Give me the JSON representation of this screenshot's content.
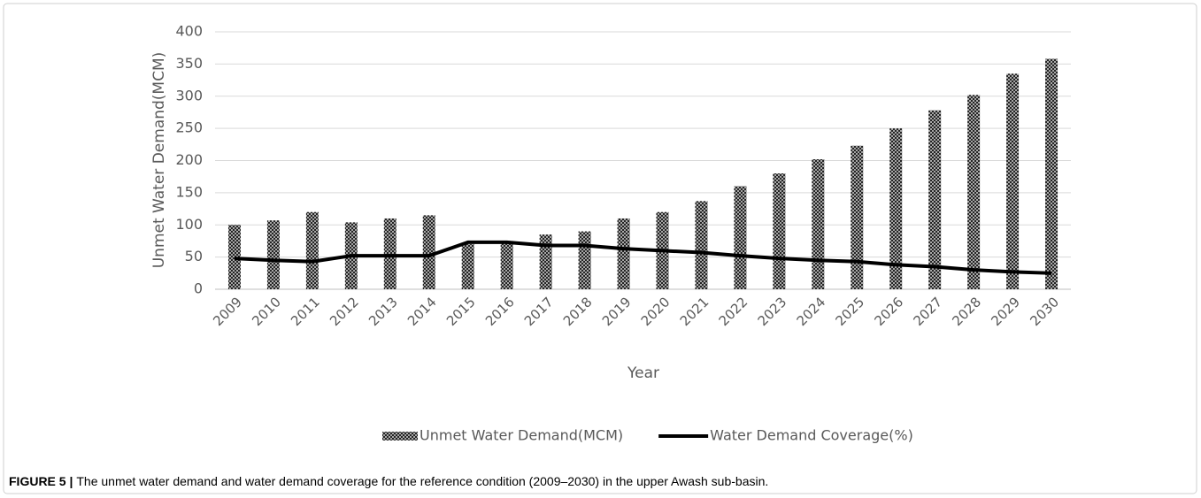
{
  "chart_data": {
    "type": "bar_line",
    "x_label": "Year",
    "y_label": "Unmet Water Demand(MCM)",
    "caption_label": "FIGURE 5 |",
    "caption": "The unmet water demand and water demand coverage for the reference condition (2009–2030) in the upper Awash sub-basin.",
    "categories": [
      "2009",
      "2010",
      "2011",
      "2012",
      "2013",
      "2014",
      "2015",
      "2016",
      "2017",
      "2018",
      "2019",
      "2020",
      "2021",
      "2022",
      "2023",
      "2024",
      "2025",
      "2026",
      "2027",
      "2028",
      "2029",
      "2030"
    ],
    "series": [
      {
        "name": "Unmet Water Demand(MCM)",
        "type": "bar",
        "color": "#222222",
        "pattern": "crosshatch",
        "values": [
          100,
          107,
          120,
          104,
          110,
          115,
          70,
          75,
          85,
          90,
          110,
          120,
          137,
          160,
          180,
          202,
          223,
          250,
          278,
          302,
          335,
          358
        ]
      },
      {
        "name": "Water Demand Coverage(%)",
        "type": "line",
        "color": "#000000",
        "values": [
          48,
          45,
          43,
          52,
          52,
          52,
          73,
          73,
          68,
          68,
          63,
          60,
          57,
          52,
          48,
          45,
          43,
          38,
          35,
          30,
          27,
          25
        ]
      }
    ],
    "ylim": [
      0,
      400
    ],
    "yticks": [
      0,
      50,
      100,
      150,
      200,
      250,
      300,
      350,
      400
    ],
    "grid": true,
    "legend": "bottom"
  }
}
